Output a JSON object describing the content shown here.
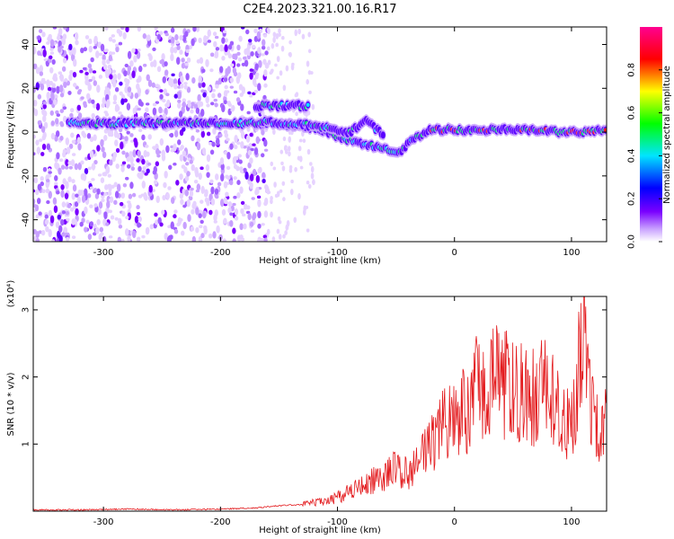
{
  "title": "C2E4.2023.321.00.16.R17",
  "chart_data": [
    {
      "type": "heatmap",
      "xlabel": "Height of straight line (km)",
      "ylabel": "Frequency (Hz)",
      "xlim": [
        -360,
        130
      ],
      "ylim": [
        -50,
        48
      ],
      "xticks": [
        -300,
        -200,
        -100,
        0,
        100
      ],
      "xtick_labels": [
        "-300",
        "-200",
        "-100",
        "0",
        "100"
      ],
      "yticks": [
        -40,
        -20,
        0,
        20,
        40
      ],
      "ytick_labels": [
        "-40",
        "-20",
        "0",
        "20",
        "40"
      ],
      "colorbar": {
        "label": "Normalized spectral amplitude",
        "range": [
          0,
          1
        ],
        "ticks": [
          0.0,
          0.2,
          0.4,
          0.6,
          0.8
        ],
        "tick_labels": [
          "0.0",
          "0.2",
          "0.4",
          "0.6",
          "0.8"
        ],
        "colormap": [
          "#ffffff",
          "#c8a0ff",
          "#7a00ff",
          "#0000ff",
          "#00e5ff",
          "#00ff00",
          "#ffff00",
          "#ff0000",
          "#ff0090"
        ]
      },
      "features": {
        "noise_region_x": [
          -360,
          -180
        ],
        "main_track": [
          [
            -330,
            4
          ],
          [
            -250,
            4
          ],
          [
            -180,
            4
          ],
          [
            -150,
            4
          ],
          [
            -120,
            2
          ],
          [
            -100,
            -2
          ],
          [
            -80,
            -5
          ],
          [
            -60,
            -8
          ],
          [
            -48,
            -10
          ],
          [
            -35,
            -3
          ],
          [
            -20,
            1
          ],
          [
            0,
            1
          ],
          [
            50,
            1
          ],
          [
            100,
            0
          ],
          [
            130,
            1
          ]
        ],
        "upper_track": [
          [
            -170,
            12
          ],
          [
            -150,
            12
          ],
          [
            -125,
            12
          ]
        ],
        "upper_track_2": [
          [
            -165,
            5
          ],
          [
            -120,
            3
          ],
          [
            -90,
            0
          ],
          [
            -75,
            5
          ],
          [
            -60,
            -2
          ]
        ]
      },
      "grid": false
    },
    {
      "type": "line",
      "xlabel": "Height of straight line (km)",
      "ylabel": "SNR (10 * v/v)",
      "multiplier_label": "(x10⁴)",
      "xlim": [
        -360,
        130
      ],
      "ylim": [
        0,
        3.2
      ],
      "xticks": [
        -300,
        -200,
        -100,
        0,
        100
      ],
      "xtick_labels": [
        "-300",
        "-200",
        "-100",
        "0",
        "100"
      ],
      "yticks": [
        1,
        2,
        3
      ],
      "ytick_labels": [
        "1",
        "2",
        "3"
      ],
      "series": [
        {
          "color": "#e3191c",
          "x": [
            -360,
            -320,
            -280,
            -240,
            -200,
            -170,
            -150,
            -130,
            -110,
            -100,
            -90,
            -80,
            -70,
            -60,
            -50,
            -40,
            -30,
            -20,
            -10,
            0,
            10,
            20,
            30,
            40,
            50,
            60,
            70,
            80,
            90,
            100,
            110,
            120,
            130
          ],
          "values": [
            0.02,
            0.02,
            0.03,
            0.02,
            0.03,
            0.05,
            0.08,
            0.1,
            0.15,
            0.2,
            0.3,
            0.35,
            0.45,
            0.5,
            0.65,
            0.55,
            0.75,
            1.0,
            1.3,
            1.5,
            1.5,
            1.85,
            2.0,
            1.9,
            1.85,
            1.7,
            1.75,
            1.8,
            1.4,
            1.3,
            2.6,
            1.2,
            1.3
          ]
        }
      ],
      "grid": false
    }
  ]
}
